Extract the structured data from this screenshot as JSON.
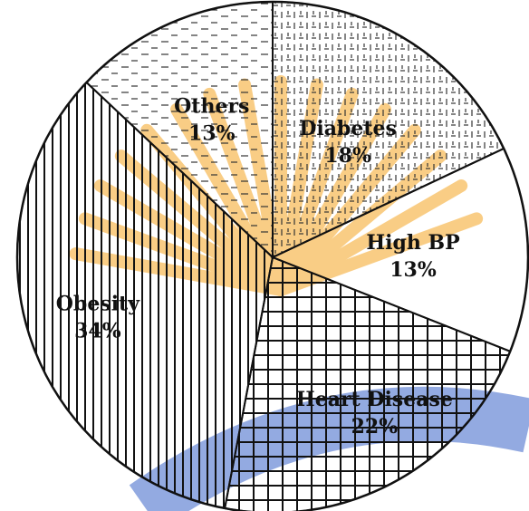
{
  "chart_data": {
    "type": "pie",
    "title": "",
    "slices": [
      {
        "label": "Diabetes",
        "value": 18,
        "value_text": "18%"
      },
      {
        "label": "High BP",
        "value": 13,
        "value_text": "13%"
      },
      {
        "label": "Heart Disease",
        "value": 22,
        "value_text": "22%"
      },
      {
        "label": "Obesity",
        "value": 34,
        "value_text": "34%"
      },
      {
        "label": "Others",
        "value": 13,
        "value_text": "13%"
      }
    ],
    "start_angle_deg": 0,
    "direction": "clockwise",
    "fill_patterns": {
      "Diabetes": "dashed-grid",
      "High BP": "blank",
      "Heart Disease": "square-grid",
      "Obesity": "vertical-lines",
      "Others": "dashed-horizontal-lines"
    },
    "colors": {
      "stroke": "#111111",
      "background": "#ffffff",
      "watermark_orange": "#f5a623",
      "watermark_blue": "#3a64c8"
    }
  }
}
